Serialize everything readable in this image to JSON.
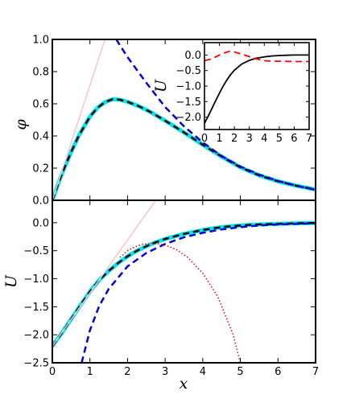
{
  "chart_data": [
    {
      "type": "line",
      "panel": "top",
      "ylabel": "φ",
      "xlim": [
        0,
        7
      ],
      "ylim": [
        0,
        1
      ],
      "yticks": [
        0.0,
        0.2,
        0.4,
        0.6,
        0.8,
        1.0
      ],
      "ytick_labels": [
        "0.0",
        "0.2",
        "0.4",
        "0.6",
        "0.8",
        "1.0"
      ],
      "series": [
        {
          "color": "#00e5ee",
          "style": "solid",
          "width": 5,
          "x": [
            0,
            0.1,
            0.2,
            0.3,
            0.5,
            0.7,
            1.0,
            1.2,
            1.4,
            1.6,
            1.8,
            2.0,
            2.3,
            2.6,
            3.0,
            3.5,
            4.0,
            4.5,
            5.0,
            5.5,
            6.0,
            6.5,
            7.0
          ],
          "y": [
            0,
            0.065,
            0.13,
            0.19,
            0.3,
            0.4,
            0.52,
            0.575,
            0.61,
            0.628,
            0.625,
            0.612,
            0.585,
            0.55,
            0.495,
            0.422,
            0.345,
            0.272,
            0.205,
            0.155,
            0.118,
            0.09,
            0.067
          ]
        },
        {
          "color": "#000000",
          "style": "dashed",
          "width": 2.5,
          "x": [
            0,
            0.1,
            0.2,
            0.3,
            0.5,
            0.7,
            1.0,
            1.2,
            1.4,
            1.6,
            1.8,
            2.0,
            2.3,
            2.6,
            3.0,
            3.5,
            4.0,
            4.5,
            5.0,
            5.5,
            6.0,
            6.5,
            7.0
          ],
          "y": [
            0,
            0.065,
            0.13,
            0.19,
            0.3,
            0.4,
            0.52,
            0.575,
            0.61,
            0.628,
            0.625,
            0.612,
            0.585,
            0.55,
            0.495,
            0.422,
            0.345,
            0.272,
            0.205,
            0.155,
            0.118,
            0.09,
            0.067
          ]
        },
        {
          "color": "#ffc0cb",
          "style": "solid",
          "width": 1.5,
          "x": [
            0,
            1.4
          ],
          "y": [
            0,
            1.0
          ]
        },
        {
          "color": "#0000dd",
          "style": "dashed",
          "width": 2.5,
          "x": [
            1.7,
            2.0,
            2.5,
            3.0,
            3.5,
            4.0,
            4.5,
            5.0,
            5.5,
            6.0,
            6.5,
            7.0
          ],
          "y": [
            1.0,
            0.89,
            0.73,
            0.58,
            0.46,
            0.36,
            0.275,
            0.21,
            0.16,
            0.12,
            0.09,
            0.065
          ]
        }
      ]
    },
    {
      "type": "line",
      "panel": "inset",
      "ylabel": "U",
      "xlim": [
        0,
        7
      ],
      "ylim": [
        -2.4,
        0.4
      ],
      "xticks": [
        0,
        1,
        2,
        3,
        4,
        5,
        6,
        7
      ],
      "xtick_labels": [
        "0",
        "1",
        "2",
        "3",
        "4",
        "5",
        "6",
        "7"
      ],
      "yticks": [
        0.0,
        -0.5,
        -1.0,
        -1.5,
        -2.0
      ],
      "ytick_labels": [
        "0.0",
        "−0.5",
        "−1.0",
        "−1.5",
        "−2.0"
      ],
      "series": [
        {
          "color": "#000000",
          "style": "solid",
          "width": 1.8,
          "x": [
            0,
            0.25,
            0.5,
            0.75,
            1.0,
            1.25,
            1.5,
            1.75,
            2.0,
            2.5,
            3.0,
            3.5,
            4.0,
            4.5,
            5.0,
            5.5,
            6.0,
            7.0
          ],
          "y": [
            -2.2,
            -1.97,
            -1.72,
            -1.47,
            -1.23,
            -1.0,
            -0.8,
            -0.63,
            -0.49,
            -0.29,
            -0.17,
            -0.1,
            -0.06,
            -0.03,
            -0.015,
            -0.008,
            0.0,
            0.0
          ]
        },
        {
          "color": "#ff0000",
          "style": "dashed",
          "width": 1.8,
          "x": [
            0,
            0.5,
            1.0,
            1.5,
            1.75,
            2.0,
            2.5,
            3.0,
            3.5,
            4.0,
            4.5,
            5.0,
            6.0,
            7.0
          ],
          "y": [
            -0.18,
            -0.12,
            0.0,
            0.1,
            0.12,
            0.1,
            0.03,
            -0.05,
            -0.13,
            -0.18,
            -0.2,
            -0.2,
            -0.21,
            -0.21
          ]
        }
      ]
    },
    {
      "type": "line",
      "panel": "bottom",
      "ylabel": "U",
      "xlabel": "x",
      "xlim": [
        0,
        7
      ],
      "ylim": [
        -2.5,
        0.4
      ],
      "xticks": [
        0,
        1,
        2,
        3,
        4,
        5,
        6,
        7
      ],
      "xtick_labels": [
        "0",
        "1",
        "2",
        "3",
        "4",
        "5",
        "6",
        "7"
      ],
      "yticks": [
        0.0,
        -0.5,
        -1.0,
        -1.5,
        -2.0,
        -2.5
      ],
      "ytick_labels": [
        "0.0",
        "−0.5",
        "−1.0",
        "−1.5",
        "−2.0",
        "−2.5"
      ],
      "series": [
        {
          "color": "#00e5ee",
          "style": "solid",
          "width": 5,
          "x": [
            0,
            0.25,
            0.5,
            0.75,
            1.0,
            1.25,
            1.5,
            1.75,
            2.0,
            2.25,
            2.5,
            2.75,
            3.0,
            3.5,
            4.0,
            4.5,
            5.0,
            5.5,
            6.0,
            6.5,
            7.0
          ],
          "y": [
            -2.2,
            -1.97,
            -1.72,
            -1.47,
            -1.23,
            -1.02,
            -0.86,
            -0.72,
            -0.6,
            -0.5,
            -0.42,
            -0.35,
            -0.29,
            -0.2,
            -0.13,
            -0.08,
            -0.05,
            -0.03,
            -0.02,
            -0.01,
            -0.005
          ]
        },
        {
          "color": "#000000",
          "style": "dashed",
          "width": 2.5,
          "x": [
            0,
            0.25,
            0.5,
            0.75,
            1.0,
            1.25,
            1.5,
            1.75,
            2.0,
            2.25,
            2.5,
            2.75,
            3.0,
            3.5,
            4.0,
            4.5,
            5.0,
            5.5,
            6.0,
            6.5,
            7.0
          ],
          "y": [
            -2.2,
            -1.97,
            -1.72,
            -1.47,
            -1.23,
            -1.02,
            -0.86,
            -0.72,
            -0.6,
            -0.5,
            -0.42,
            -0.35,
            -0.29,
            -0.2,
            -0.13,
            -0.08,
            -0.05,
            -0.03,
            -0.02,
            -0.01,
            -0.005
          ]
        },
        {
          "color": "#ffc0cb",
          "style": "solid",
          "width": 1.5,
          "x": [
            0,
            2.75
          ],
          "y": [
            -2.2,
            0.4
          ]
        },
        {
          "color": "#0000dd",
          "style": "dashed",
          "width": 2.5,
          "x": [
            0.78,
            1.0,
            1.25,
            1.5,
            2.0,
            2.5,
            3.0,
            3.5,
            4.0,
            4.5,
            5.0,
            5.5,
            6.0,
            6.5,
            7.0
          ],
          "y": [
            -2.5,
            -1.92,
            -1.48,
            -1.18,
            -0.78,
            -0.54,
            -0.38,
            -0.26,
            -0.18,
            -0.12,
            -0.08,
            -0.05,
            -0.03,
            -0.02,
            -0.01
          ]
        },
        {
          "color": "#dd0000",
          "style": "dotted",
          "width": 1.5,
          "x": [
            1.8,
            2.0,
            2.2,
            2.4,
            2.6,
            2.8,
            3.0,
            3.3,
            3.6,
            4.0,
            4.4,
            4.8,
            5.0
          ],
          "y": [
            -0.62,
            -0.5,
            -0.43,
            -0.385,
            -0.37,
            -0.375,
            -0.4,
            -0.48,
            -0.62,
            -0.9,
            -1.32,
            -1.98,
            -2.5
          ]
        }
      ]
    }
  ]
}
